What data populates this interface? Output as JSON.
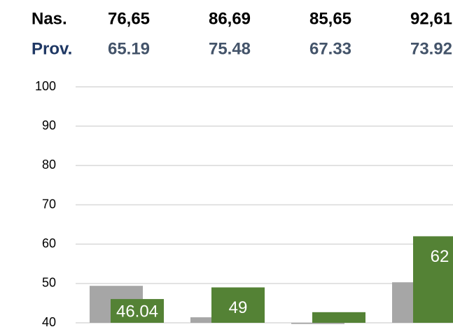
{
  "chart_data": {
    "type": "bar",
    "header_rows": [
      {
        "label": "Nas.",
        "values": [
          "76,65",
          "86,69",
          "85,65",
          "92,61"
        ]
      },
      {
        "label": "Prov.",
        "values": [
          "65.19",
          "75.48",
          "67.33",
          "73.92"
        ]
      }
    ],
    "series": [
      {
        "color": "#a6a6a6",
        "values": [
          49.4,
          41.4,
          39.7,
          50.3
        ]
      },
      {
        "color": "#548235",
        "values": [
          46.04,
          49,
          42.7,
          62
        ],
        "value_labels": [
          "46.04",
          "49",
          null,
          "62"
        ]
      }
    ],
    "ylim": [
      40,
      100
    ],
    "yticks": [
      40,
      50,
      60,
      70,
      80,
      90,
      100
    ],
    "grid": true
  }
}
